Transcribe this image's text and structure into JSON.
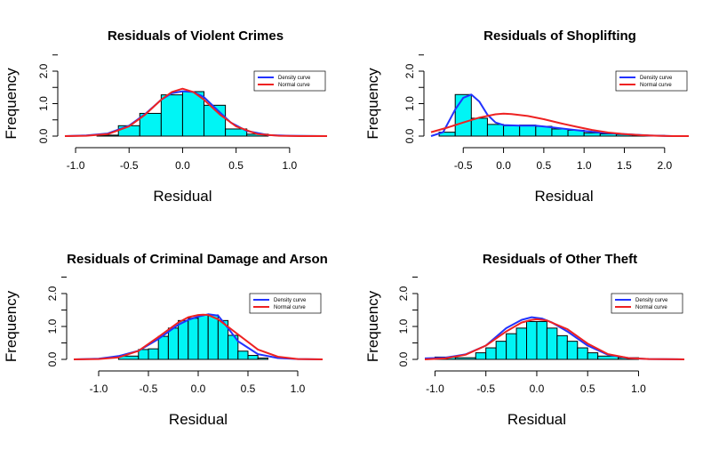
{
  "chart_data": [
    {
      "type": "bar",
      "title": "Residuals of Violent Crimes",
      "xlabel": "Residual",
      "ylabel": "Frequency",
      "xticks": [
        "-1.0",
        "-0.5",
        "0.0",
        "0.5",
        "1.0"
      ],
      "yticks": [
        "0.0",
        "1.0",
        "2.0"
      ],
      "xlim": [
        -1.1,
        1.35
      ],
      "ylim": [
        0,
        2
      ],
      "bin_edges": [
        -0.8,
        -0.6,
        -0.4,
        -0.2,
        0.0,
        0.2,
        0.4,
        0.6,
        0.8
      ],
      "values": [
        0.03,
        0.32,
        0.7,
        1.27,
        1.37,
        0.95,
        0.22,
        0.06
      ],
      "legend": [
        "Density curve",
        "Normal curve"
      ],
      "legend_position": "top-right",
      "colors": {
        "bars": "#00f5f5",
        "density": "#2233ff",
        "normal": "#ee2222"
      },
      "density": {
        "x": [
          -1.1,
          -0.9,
          -0.7,
          -0.5,
          -0.35,
          -0.2,
          -0.1,
          0.0,
          0.1,
          0.2,
          0.3,
          0.45,
          0.6,
          0.8,
          1.0,
          1.35
        ],
        "y": [
          0.0,
          0.02,
          0.08,
          0.32,
          0.68,
          1.12,
          1.32,
          1.38,
          1.36,
          1.2,
          0.88,
          0.42,
          0.16,
          0.03,
          0.01,
          0.0
        ]
      },
      "normal": {
        "x": [
          -1.1,
          -0.9,
          -0.7,
          -0.5,
          -0.35,
          -0.2,
          -0.1,
          0.0,
          0.1,
          0.2,
          0.35,
          0.5,
          0.7,
          0.9,
          1.1,
          1.35
        ],
        "y": [
          0.0,
          0.01,
          0.06,
          0.3,
          0.66,
          1.12,
          1.36,
          1.46,
          1.36,
          1.12,
          0.66,
          0.3,
          0.06,
          0.01,
          0.0,
          0.0
        ]
      }
    },
    {
      "type": "bar",
      "title": "Residuals of Shoplifting",
      "xlabel": "Residual",
      "ylabel": "Frequency",
      "xticks": [
        "-0.5",
        "0.0",
        "0.5",
        "1.0",
        "1.5",
        "2.0"
      ],
      "yticks": [
        "0.0",
        "1.0",
        "2.0"
      ],
      "xlim": [
        -0.9,
        2.3
      ],
      "ylim": [
        0,
        2
      ],
      "bin_edges": [
        -0.8,
        -0.6,
        -0.4,
        -0.2,
        0.0,
        0.2,
        0.4,
        0.6,
        0.8,
        1.0,
        1.2,
        1.4,
        1.6,
        1.8,
        2.0
      ],
      "values": [
        0.12,
        1.28,
        0.55,
        0.36,
        0.32,
        0.34,
        0.3,
        0.22,
        0.18,
        0.1,
        0.07,
        0.05,
        0.02,
        0.02
      ],
      "legend": [
        "Density curve",
        "Normal curve"
      ],
      "legend_position": "top-right",
      "colors": {
        "bars": "#00f5f5",
        "density": "#2233ff",
        "normal": "#ee2222"
      },
      "density": {
        "x": [
          -0.9,
          -0.75,
          -0.6,
          -0.5,
          -0.4,
          -0.3,
          -0.2,
          -0.1,
          0.0,
          0.2,
          0.4,
          0.6,
          0.8,
          1.0,
          1.2,
          1.5,
          1.8,
          2.1,
          2.3
        ],
        "y": [
          0.0,
          0.12,
          0.82,
          1.18,
          1.28,
          1.06,
          0.66,
          0.42,
          0.34,
          0.32,
          0.32,
          0.27,
          0.21,
          0.16,
          0.11,
          0.06,
          0.02,
          0.0,
          0.0
        ]
      },
      "normal": {
        "x": [
          -0.9,
          -0.7,
          -0.5,
          -0.3,
          -0.1,
          0.0,
          0.1,
          0.3,
          0.5,
          0.7,
          0.9,
          1.1,
          1.3,
          1.5,
          1.7,
          1.9,
          2.1,
          2.3
        ],
        "y": [
          0.12,
          0.26,
          0.42,
          0.57,
          0.67,
          0.69,
          0.68,
          0.62,
          0.52,
          0.4,
          0.29,
          0.19,
          0.11,
          0.06,
          0.03,
          0.01,
          0.0,
          0.0
        ]
      }
    },
    {
      "type": "bar",
      "title": "Residuals of Criminal Damage and Arson",
      "xlabel": "Residual",
      "ylabel": "Frequency",
      "xticks": [
        "-1.0",
        "-0.5",
        "0.0",
        "0.5",
        "1.0"
      ],
      "yticks": [
        "0.0",
        "1.0",
        "2.0"
      ],
      "xlim": [
        -1.25,
        1.25
      ],
      "ylim": [
        0,
        2
      ],
      "bin_edges": [
        -0.8,
        -0.6,
        -0.5,
        -0.4,
        -0.3,
        -0.2,
        -0.1,
        0.0,
        0.1,
        0.2,
        0.3,
        0.4,
        0.5,
        0.6,
        0.7
      ],
      "values": [
        0.1,
        0.3,
        0.32,
        0.7,
        0.95,
        1.18,
        1.25,
        1.35,
        1.35,
        1.18,
        0.73,
        0.25,
        0.12,
        0.04
      ],
      "legend": [
        "Density curve",
        "Normal curve"
      ],
      "legend_position": "top-right",
      "colors": {
        "bars": "#00f5f5",
        "density": "#2233ff",
        "normal": "#ee2222"
      },
      "density": {
        "x": [
          -1.25,
          -1.0,
          -0.8,
          -0.6,
          -0.4,
          -0.2,
          -0.1,
          0.0,
          0.1,
          0.2,
          0.3,
          0.4,
          0.6,
          0.8,
          1.0,
          1.25
        ],
        "y": [
          0.0,
          0.02,
          0.1,
          0.26,
          0.62,
          1.05,
          1.2,
          1.3,
          1.37,
          1.33,
          0.95,
          0.55,
          0.16,
          0.04,
          0.01,
          0.0
        ]
      },
      "normal": {
        "x": [
          -1.25,
          -1.0,
          -0.8,
          -0.6,
          -0.4,
          -0.2,
          -0.1,
          0.0,
          0.05,
          0.1,
          0.2,
          0.4,
          0.6,
          0.8,
          1.0,
          1.25
        ],
        "y": [
          0.0,
          0.01,
          0.06,
          0.26,
          0.68,
          1.12,
          1.28,
          1.35,
          1.36,
          1.35,
          1.22,
          0.76,
          0.3,
          0.08,
          0.01,
          0.0
        ]
      }
    },
    {
      "type": "bar",
      "title": "Residuals of Other Theft",
      "xlabel": "Residual",
      "ylabel": "Frequency",
      "xticks": [
        "-1.0",
        "-0.5",
        "0.0",
        "0.5",
        "1.0"
      ],
      "yticks": [
        "0.0",
        "1.0",
        "2.0"
      ],
      "xlim": [
        -1.1,
        1.45
      ],
      "ylim": [
        0,
        2
      ],
      "bin_edges": [
        -1.0,
        -0.8,
        -0.6,
        -0.5,
        -0.4,
        -0.3,
        -0.2,
        -0.1,
        0.0,
        0.1,
        0.2,
        0.3,
        0.4,
        0.5,
        0.6,
        0.8,
        1.0
      ],
      "values": [
        0.07,
        0.05,
        0.2,
        0.35,
        0.55,
        0.78,
        0.95,
        1.15,
        1.15,
        0.95,
        0.72,
        0.55,
        0.35,
        0.2,
        0.1,
        0.05
      ],
      "legend": [
        "Density curve",
        "Normal curve"
      ],
      "legend_position": "top-right",
      "colors": {
        "bars": "#00f5f5",
        "density": "#2233ff",
        "normal": "#ee2222"
      },
      "density": {
        "x": [
          -1.1,
          -0.9,
          -0.7,
          -0.5,
          -0.3,
          -0.15,
          -0.05,
          0.05,
          0.15,
          0.3,
          0.5,
          0.7,
          0.9,
          1.1,
          1.45
        ],
        "y": [
          0.03,
          0.05,
          0.15,
          0.42,
          0.95,
          1.2,
          1.28,
          1.24,
          1.12,
          0.85,
          0.42,
          0.14,
          0.04,
          0.01,
          0.0
        ]
      },
      "normal": {
        "x": [
          -1.1,
          -0.9,
          -0.7,
          -0.5,
          -0.3,
          -0.15,
          -0.05,
          0.0,
          0.1,
          0.3,
          0.5,
          0.7,
          0.9,
          1.1,
          1.45
        ],
        "y": [
          0.0,
          0.03,
          0.14,
          0.42,
          0.85,
          1.12,
          1.2,
          1.22,
          1.18,
          0.92,
          0.48,
          0.16,
          0.04,
          0.01,
          0.0
        ]
      }
    }
  ]
}
